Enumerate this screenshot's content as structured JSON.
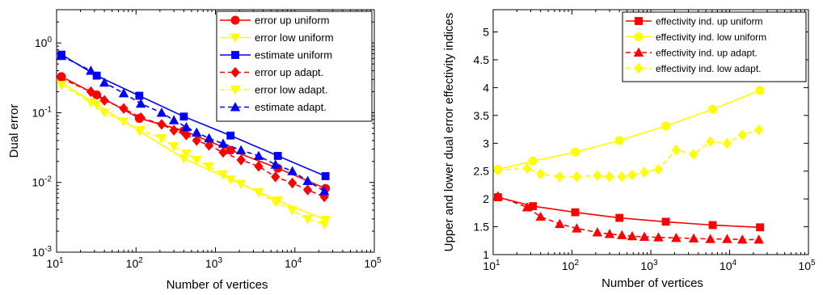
{
  "colors": {
    "red": "#ff0000",
    "yellow": "#ffff00",
    "blue": "#0000ff"
  },
  "chart_data": [
    {
      "type": "line",
      "xscale": "log",
      "yscale": "log",
      "xlabel": "Number of vertices",
      "ylabel": "Dual error",
      "xlim": [
        10,
        100000
      ],
      "ylim": [
        0.001,
        3
      ],
      "x_ticks": [
        {
          "base": "10",
          "exp": "1"
        },
        {
          "base": "10",
          "exp": "2"
        },
        {
          "base": "10",
          "exp": "3"
        },
        {
          "base": "10",
          "exp": "4"
        },
        {
          "base": "10",
          "exp": "5"
        }
      ],
      "y_ticks": [
        {
          "base": "10",
          "exp": "-3"
        },
        {
          "base": "10",
          "exp": "-2"
        },
        {
          "base": "10",
          "exp": "-1"
        },
        {
          "base": "10",
          "exp": "0"
        }
      ],
      "legend": "top-right",
      "grid": false,
      "series": [
        {
          "name": "error up uniform",
          "color": "red",
          "marker": "circle",
          "dash": false,
          "x": [
            11.5,
            32,
            110,
            400,
            1550,
            6100,
            24300
          ],
          "y": [
            0.33,
            0.18,
            0.083,
            0.055,
            0.029,
            0.016,
            0.0082
          ]
        },
        {
          "name": "error low uniform",
          "color": "yellow",
          "marker": "triangle-down",
          "dash": false,
          "x": [
            11.5,
            32,
            110,
            400,
            1550,
            6100,
            24300
          ],
          "y": [
            0.27,
            0.13,
            0.055,
            0.022,
            0.011,
            0.0055,
            0.0029
          ]
        },
        {
          "name": "estimate uniform",
          "color": "blue",
          "marker": "square",
          "dash": false,
          "x": [
            11.5,
            32,
            110,
            400,
            1550,
            6100,
            24300
          ],
          "y": [
            0.68,
            0.34,
            0.175,
            0.088,
            0.047,
            0.024,
            0.0123
          ]
        },
        {
          "name": "error up adapt.",
          "color": "red",
          "marker": "diamond",
          "dash": true,
          "x": [
            11.5,
            27,
            40,
            70,
            115,
            210,
            300,
            430,
            580,
            830,
            1250,
            2100,
            3500,
            5700,
            9300,
            14500,
            23500
          ],
          "y": [
            0.31,
            0.2,
            0.15,
            0.115,
            0.085,
            0.068,
            0.056,
            0.048,
            0.04,
            0.034,
            0.027,
            0.021,
            0.017,
            0.012,
            0.0098,
            0.0078,
            0.0062
          ]
        },
        {
          "name": "error low adapt.",
          "color": "yellow",
          "marker": "triangle-down",
          "dash": true,
          "x": [
            11.5,
            27,
            40,
            70,
            115,
            210,
            300,
            430,
            580,
            830,
            1250,
            2100,
            3500,
            5700,
            9300,
            14500,
            23500
          ],
          "y": [
            0.25,
            0.14,
            0.1,
            0.075,
            0.056,
            0.043,
            0.033,
            0.026,
            0.021,
            0.017,
            0.013,
            0.0095,
            0.0072,
            0.0052,
            0.004,
            0.003,
            0.0025
          ]
        },
        {
          "name": "estimate adapt.",
          "color": "blue",
          "marker": "triangle-up",
          "dash": true,
          "x": [
            11.5,
            27,
            40,
            70,
            115,
            210,
            300,
            430,
            580,
            830,
            1250,
            2100,
            3500,
            5700,
            9300,
            14500,
            23500
          ],
          "y": [
            0.65,
            0.4,
            0.27,
            0.19,
            0.135,
            0.1,
            0.078,
            0.062,
            0.052,
            0.043,
            0.036,
            0.029,
            0.024,
            0.018,
            0.0145,
            0.0105,
            0.0075
          ]
        }
      ]
    },
    {
      "type": "line",
      "xscale": "log",
      "yscale": "linear",
      "xlabel": "Number of vertices",
      "ylabel": "Upper and lower dual error effectivity indices",
      "xlim": [
        10,
        100000
      ],
      "ylim": [
        1,
        5.4
      ],
      "x_ticks": [
        {
          "base": "10",
          "exp": "1"
        },
        {
          "base": "10",
          "exp": "2"
        },
        {
          "base": "10",
          "exp": "3"
        },
        {
          "base": "10",
          "exp": "4"
        },
        {
          "base": "10",
          "exp": "5"
        }
      ],
      "y_ticks": [
        "1",
        "1.5",
        "2",
        "2.5",
        "3",
        "3.5",
        "4",
        "4.5",
        "5"
      ],
      "legend": "top-right",
      "grid": false,
      "series": [
        {
          "name": "effectivity ind. up uniform",
          "color": "red",
          "marker": "square",
          "dash": false,
          "x": [
            11.5,
            32,
            110,
            400,
            1550,
            6100,
            24300
          ],
          "y": [
            2.03,
            1.87,
            1.76,
            1.66,
            1.59,
            1.53,
            1.49
          ]
        },
        {
          "name": "effectivity ind. low uniform",
          "color": "yellow",
          "marker": "circle",
          "dash": false,
          "x": [
            11.5,
            32,
            110,
            400,
            1550,
            6100,
            24300
          ],
          "y": [
            2.53,
            2.68,
            2.84,
            3.05,
            3.31,
            3.61,
            3.95
          ]
        },
        {
          "name": "effectivity ind. up adapt.",
          "color": "red",
          "marker": "triangle-up",
          "dash": true,
          "x": [
            11.5,
            27,
            40,
            70,
            115,
            210,
            300,
            430,
            580,
            830,
            1250,
            2100,
            3500,
            5700,
            9300,
            14500,
            23500
          ],
          "y": [
            2.05,
            1.85,
            1.68,
            1.55,
            1.47,
            1.4,
            1.37,
            1.35,
            1.33,
            1.32,
            1.31,
            1.3,
            1.29,
            1.28,
            1.28,
            1.27,
            1.27
          ]
        },
        {
          "name": "effectivity ind. low adapt.",
          "color": "yellow",
          "marker": "diamond",
          "dash": true,
          "x": [
            11.5,
            27,
            40,
            70,
            115,
            210,
            300,
            430,
            580,
            830,
            1250,
            2100,
            3500,
            5700,
            9300,
            14500,
            23500
          ],
          "y": [
            2.52,
            2.55,
            2.45,
            2.4,
            2.4,
            2.42,
            2.4,
            2.4,
            2.43,
            2.48,
            2.53,
            2.88,
            2.8,
            3.03,
            3.0,
            3.15,
            3.24
          ]
        }
      ]
    }
  ]
}
